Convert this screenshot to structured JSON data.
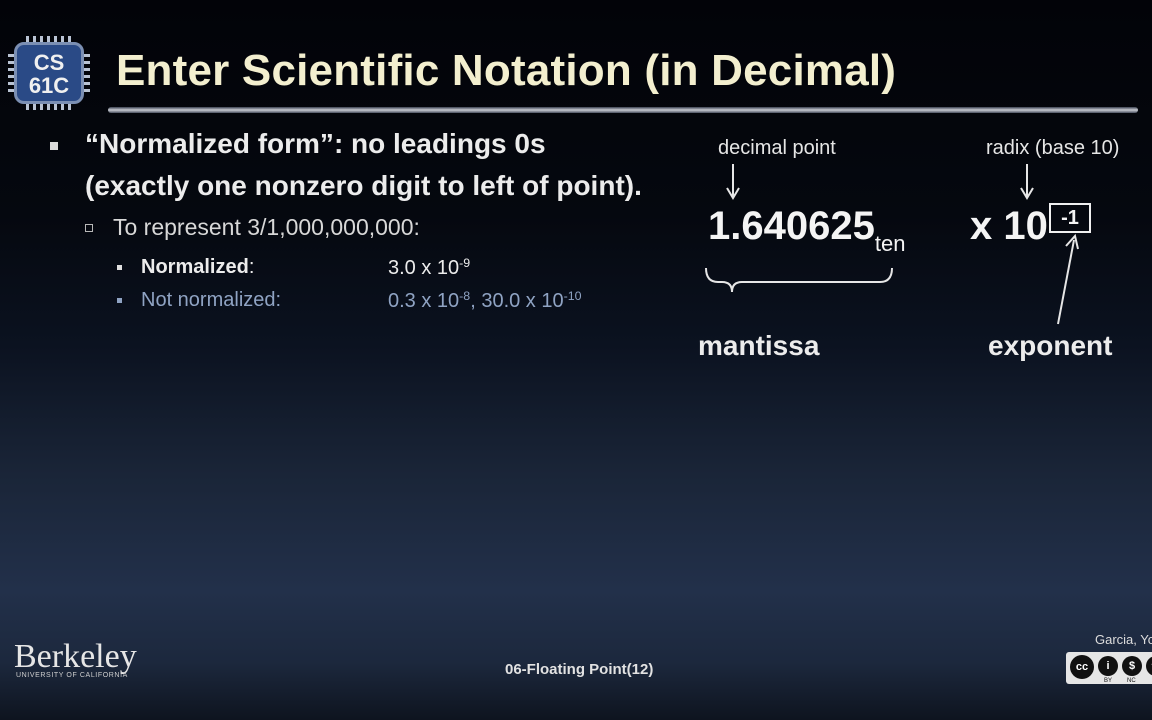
{
  "logo": {
    "line1": "CS",
    "line2": "61C"
  },
  "title": "Enter Scientific Notation (in Decimal)",
  "bullets": {
    "b1_quote": "“Normalized form”",
    "b1_rest": ": no leadings 0s",
    "b1_line2": "(exactly one nonzero digit to left of point).",
    "b2": "To represent 3/1,000,000,000:",
    "normalized_label": "Normalized",
    "normalized_colon": ":",
    "normalized_value_base": "3.0 x 10",
    "normalized_value_exp": "-9",
    "not_normalized_label": "Not normalized:",
    "nn_a_base": "0.3 x 10",
    "nn_a_exp": "-8",
    "nn_sep": ", 30.0 x 10",
    "nn_b_exp": "-10"
  },
  "diagram": {
    "decimal_point_label": "decimal point",
    "radix_label": "radix (base 10)",
    "mantissa_value": "1.640625",
    "subscript": "ten",
    "times": "x 10",
    "exponent_value": "-1",
    "mantissa_caption": "mantissa",
    "exponent_caption": "exponent"
  },
  "footer": {
    "university": "Berkeley",
    "university_sub": "UNIVERSITY OF CALIFORNIA",
    "slide_label": "06-Floating Point(12)",
    "credit": "Garcia, Yo",
    "cc_labels": [
      "BY",
      "NC"
    ]
  },
  "colors": {
    "title": "#f3efcf",
    "highlight": "#e8e8e8",
    "dim": "#8fa3c3",
    "logo": "#2a4a86"
  }
}
